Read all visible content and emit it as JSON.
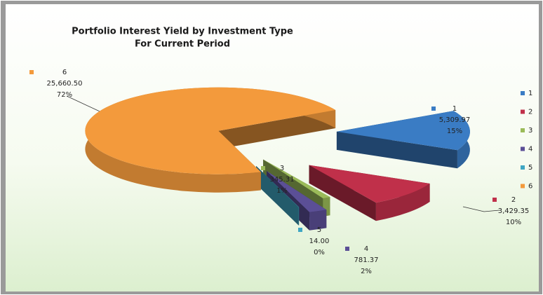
{
  "chart_data": {
    "type": "pie",
    "title": "Portfolio Interest Yield by Investment Type",
    "subtitle": "For Current Period",
    "categories": [
      "1",
      "2",
      "3",
      "4",
      "5",
      "6"
    ],
    "values": [
      5309.97,
      3429.35,
      345.31,
      781.37,
      14.0,
      25660.5
    ],
    "value_labels": [
      "5,309.97",
      "3,429.35",
      "345.31",
      "781.37",
      "14.00",
      "25,660.50"
    ],
    "percent_labels": [
      "15%",
      "10%",
      "1%",
      "2%",
      "0%",
      "72%"
    ],
    "colors": [
      "#3a7cc4",
      "#c0304a",
      "#9bbb59",
      "#5b4f96",
      "#3fa6c3",
      "#f39a3c"
    ],
    "legend": "right"
  }
}
